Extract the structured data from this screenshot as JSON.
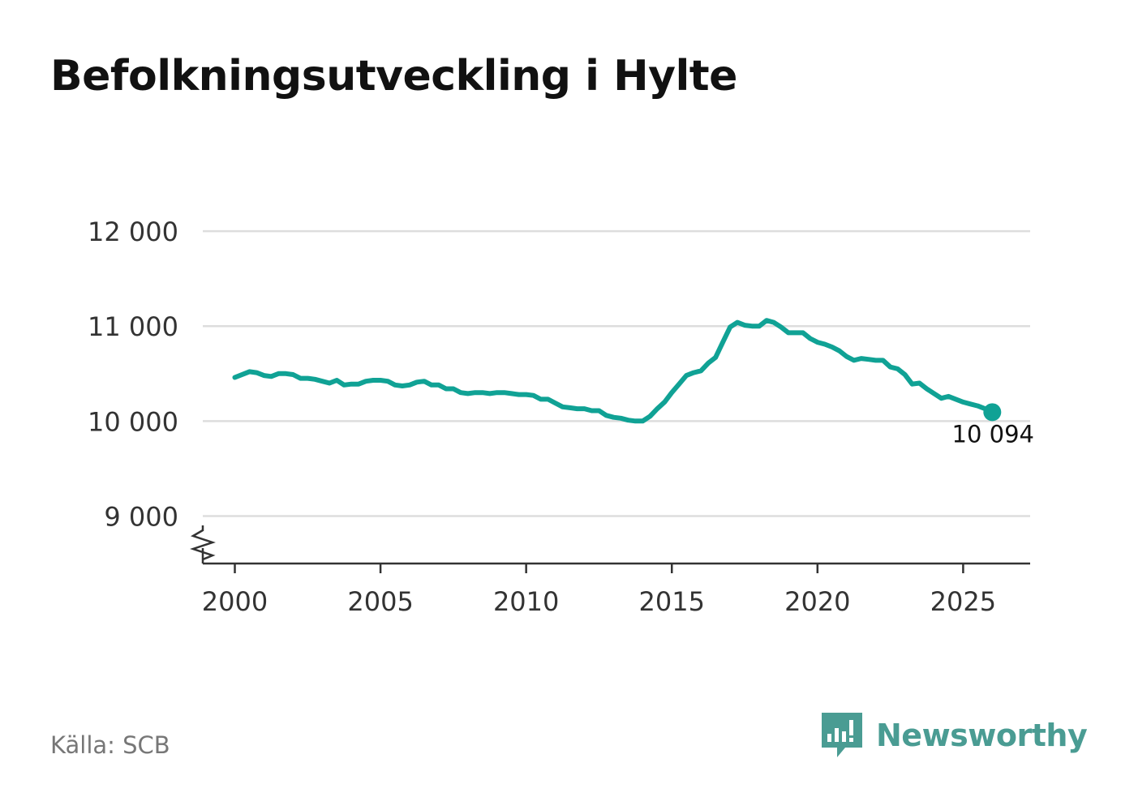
{
  "title": "Befolkningsutveckling i Hylte",
  "source": "Källa: SCB",
  "brand": "Newsworthy",
  "colors": {
    "line": "#10a295",
    "grid": "#dddddd",
    "axis": "#333333",
    "tick_text": "#333333",
    "brand": "#4a9c93"
  },
  "chart_data": {
    "type": "line",
    "title": "Befolkningsutveckling i Hylte",
    "xlabel": "",
    "ylabel": "",
    "xlim": [
      1998.9,
      2027.3
    ],
    "ylim": [
      8500,
      12300
    ],
    "y_axis_break": true,
    "grid": "horizontal",
    "x_ticks": [
      2000,
      2005,
      2010,
      2015,
      2020,
      2025
    ],
    "x_tick_labels": [
      "2000",
      "2005",
      "2010",
      "2015",
      "2020",
      "2025"
    ],
    "y_ticks": [
      9000,
      10000,
      11000,
      12000
    ],
    "y_tick_labels": [
      "9 000",
      "10 000",
      "11 000",
      "12 000"
    ],
    "series": [
      {
        "name": "Befolkning",
        "x": [
          2000.0,
          2000.5,
          2000.75,
          2001.0,
          2001.25,
          2001.5,
          2001.75,
          2002.0,
          2002.25,
          2002.5,
          2002.75,
          2003.0,
          2003.25,
          2003.5,
          2003.75,
          2004.0,
          2004.25,
          2004.5,
          2004.75,
          2005.0,
          2005.25,
          2005.5,
          2005.75,
          2006.0,
          2006.25,
          2006.5,
          2006.75,
          2007.0,
          2007.25,
          2007.5,
          2007.75,
          2008.0,
          2008.25,
          2008.5,
          2008.75,
          2009.0,
          2009.25,
          2009.5,
          2009.75,
          2010.0,
          2010.25,
          2010.5,
          2010.75,
          2011.0,
          2011.25,
          2011.5,
          2011.75,
          2012.0,
          2012.25,
          2012.5,
          2012.75,
          2013.0,
          2013.25,
          2013.5,
          2013.75,
          2014.0,
          2014.25,
          2014.5,
          2014.75,
          2015.0,
          2015.25,
          2015.5,
          2015.75,
          2016.0,
          2016.25,
          2016.5,
          2016.75,
          2017.0,
          2017.25,
          2017.5,
          2017.75,
          2018.0,
          2018.25,
          2018.5,
          2018.75,
          2019.0,
          2019.25,
          2019.5,
          2019.75,
          2020.0,
          2020.25,
          2020.5,
          2020.75,
          2021.0,
          2021.25,
          2021.5,
          2021.75,
          2022.0,
          2022.25,
          2022.5,
          2022.75,
          2023.0,
          2023.25,
          2023.5,
          2023.75,
          2024.0,
          2024.25,
          2024.5,
          2024.75,
          2025.0,
          2025.25,
          2025.5,
          2025.75,
          2026.0
        ],
        "values": [
          10460,
          10520,
          10510,
          10480,
          10470,
          10500,
          10500,
          10490,
          10450,
          10450,
          10440,
          10420,
          10400,
          10430,
          10380,
          10390,
          10390,
          10420,
          10430,
          10430,
          10420,
          10380,
          10370,
          10380,
          10410,
          10420,
          10380,
          10380,
          10340,
          10340,
          10300,
          10290,
          10300,
          10300,
          10290,
          10300,
          10300,
          10290,
          10280,
          10280,
          10270,
          10230,
          10230,
          10190,
          10150,
          10140,
          10130,
          10130,
          10110,
          10110,
          10060,
          10040,
          10030,
          10010,
          10000,
          10000,
          10050,
          10130,
          10200,
          10300,
          10390,
          10480,
          10510,
          10530,
          10610,
          10670,
          10830,
          10990,
          11040,
          11010,
          11000,
          11000,
          11060,
          11040,
          10990,
          10930,
          10930,
          10930,
          10870,
          10830,
          10810,
          10780,
          10740,
          10680,
          10640,
          10660,
          10650,
          10640,
          10640,
          10570,
          10550,
          10490,
          10390,
          10400,
          10340,
          10290,
          10240,
          10260,
          10230,
          10200,
          10180,
          10160,
          10130,
          10094
        ]
      }
    ],
    "annotations": [
      {
        "label": "10 094",
        "x": 2026.0,
        "y": 10094
      }
    ]
  }
}
